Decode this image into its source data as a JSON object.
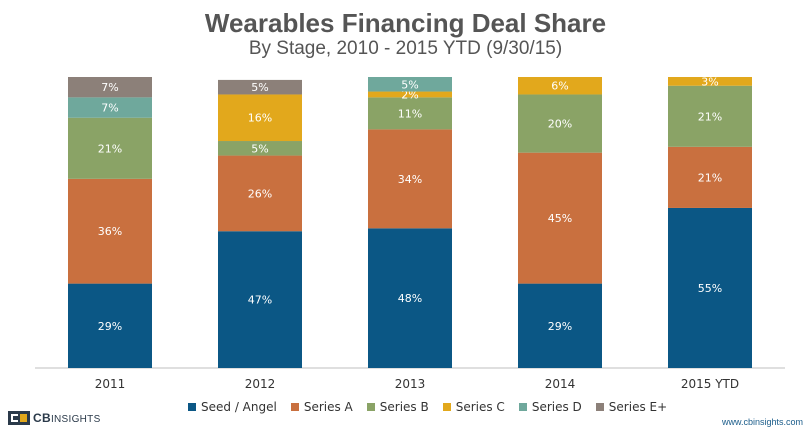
{
  "chart_data": {
    "type": "bar",
    "stacked": true,
    "title": "Wearables Financing Deal Share",
    "subtitle": "By Stage, 2010 - 2015 YTD (9/30/15)",
    "categories": [
      "2011",
      "2012",
      "2013",
      "2014",
      "2015 YTD"
    ],
    "ylim": [
      0,
      100
    ],
    "legend_position": "bottom",
    "series": [
      {
        "name": "Seed / Angel",
        "color": "#0b5785",
        "values": [
          29,
          47,
          48,
          29,
          55
        ]
      },
      {
        "name": "Series A",
        "color": "#c9703f",
        "values": [
          36,
          26,
          34,
          45,
          21
        ]
      },
      {
        "name": "Series B",
        "color": "#8aa366",
        "values": [
          21,
          5,
          11,
          20,
          21
        ]
      },
      {
        "name": "Series C",
        "color": "#e2a81c",
        "values": [
          0,
          16,
          2,
          6,
          3
        ]
      },
      {
        "name": "Series D",
        "color": "#6fa89c",
        "values": [
          7,
          0,
          5,
          0,
          0
        ]
      },
      {
        "name": "Series E+",
        "color": "#8c8079",
        "values": [
          7,
          5,
          0,
          0,
          0
        ]
      }
    ]
  },
  "footer": {
    "logo_text": "CB",
    "logo_text_thin": "INSIGHTS",
    "url": "www.cbinsights.com"
  }
}
